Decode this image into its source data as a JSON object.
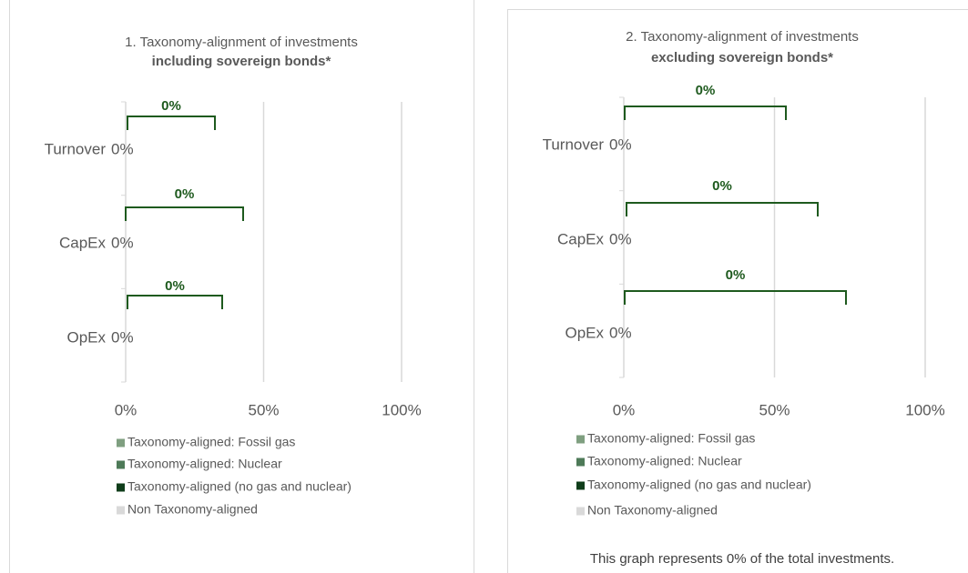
{
  "chart_data": [
    {
      "type": "bar",
      "orientation": "horizontal",
      "stacked": true,
      "title": "1. Taxonomy-alignment of investments",
      "subtitle": "including sovereign bonds*",
      "categories": [
        "Turnover",
        "CapEx",
        "OpEx"
      ],
      "series": [
        {
          "name": "Taxonomy-aligned: Fossil gas",
          "color": "#7f9f80",
          "values": [
            0,
            0,
            0
          ]
        },
        {
          "name": "Taxonomy-aligned: Nuclear",
          "color": "#4e7a58",
          "values": [
            0,
            0,
            0
          ]
        },
        {
          "name": "Taxonomy-aligned (no gas and nuclear)",
          "color": "#0f3d1a",
          "values": [
            0,
            0,
            0
          ]
        },
        {
          "name": "Non Taxonomy-aligned",
          "color": "#d9d9d9",
          "values": [
            0,
            0,
            0
          ],
          "value_labels": [
            "0%",
            "0%",
            "0%"
          ]
        }
      ],
      "annotations": [
        "0%",
        "0%",
        "0%"
      ],
      "xlim": [
        0,
        100
      ],
      "xticks": [
        {
          "value": 0,
          "label": "0%"
        },
        {
          "value": 50,
          "label": "50%"
        },
        {
          "value": 100,
          "label": "100%"
        }
      ],
      "grid": true,
      "legend": "bottom"
    },
    {
      "type": "bar",
      "orientation": "horizontal",
      "stacked": true,
      "title": "2. Taxonomy-alignment of investments",
      "subtitle": "excluding sovereign bonds*",
      "categories": [
        "Turnover",
        "CapEx",
        "OpEx"
      ],
      "series": [
        {
          "name": "Taxonomy-aligned: Fossil gas",
          "color": "#7f9f80",
          "values": [
            0,
            0,
            0
          ]
        },
        {
          "name": "Taxonomy-aligned: Nuclear",
          "color": "#4e7a58",
          "values": [
            0,
            0,
            0
          ]
        },
        {
          "name": "Taxonomy-aligned (no gas and nuclear)",
          "color": "#0f3d1a",
          "values": [
            0,
            0,
            0
          ]
        },
        {
          "name": "Non Taxonomy-aligned",
          "color": "#d9d9d9",
          "values": [
            0,
            0,
            0
          ],
          "value_labels": [
            "0%",
            "0%",
            "0%"
          ]
        }
      ],
      "annotations": [
        "0%",
        "0%",
        "0%"
      ],
      "xlim": [
        0,
        100
      ],
      "xticks": [
        {
          "value": 0,
          "label": "0%"
        },
        {
          "value": 50,
          "label": "50%"
        },
        {
          "value": 100,
          "label": "100%"
        }
      ],
      "grid": true,
      "legend": "bottom",
      "note": "This graph represents 0% of the total investments."
    }
  ]
}
